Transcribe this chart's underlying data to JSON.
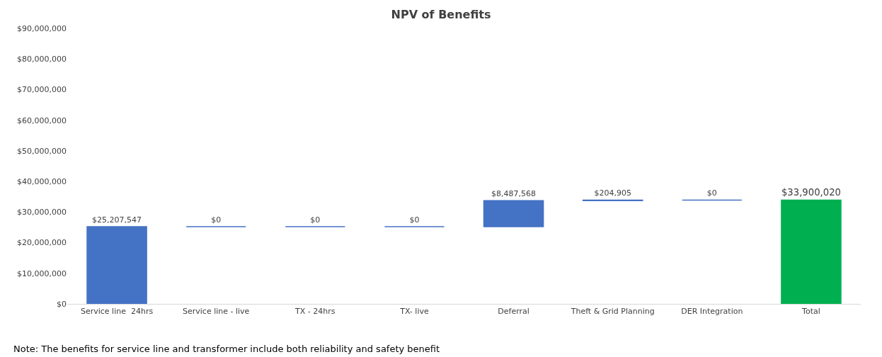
{
  "chart_data": {
    "type": "bar",
    "title": "NPV of Benefits",
    "categories": [
      "Service line  24hrs",
      "Service line - live",
      "TX - 24hrs",
      "TX- live",
      "Deferral",
      "Theft & Grid Planning",
      "DER Integration",
      "Total"
    ],
    "values": [
      25207547,
      0,
      0,
      0,
      8487568,
      204905,
      0,
      33900020
    ],
    "base": [
      0,
      25207547,
      25207547,
      25207547,
      25207547,
      33695115,
      33900020,
      0
    ],
    "colors": [
      "#4472c4",
      "#4472c4",
      "#4472c4",
      "#4472c4",
      "#4472c4",
      "#4472c4",
      "#4472c4",
      "#00b050"
    ],
    "value_labels": [
      "$25,207,547",
      "$0",
      "$0",
      "$0",
      "$8,487,568",
      "$204,905",
      "$0",
      "$33,900,020"
    ],
    "ylim": [
      0,
      90000000
    ],
    "yticks": [
      {
        "value": 0,
        "label": "$0"
      },
      {
        "value": 10000000,
        "label": "$10,000,000"
      },
      {
        "value": 20000000,
        "label": "$20,000,000"
      },
      {
        "value": 30000000,
        "label": "$30,000,000"
      },
      {
        "value": 40000000,
        "label": "$40,000,000"
      },
      {
        "value": 50000000,
        "label": "$50,000,000"
      },
      {
        "value": 60000000,
        "label": "$60,000,000"
      },
      {
        "value": 70000000,
        "label": "$70,000,000"
      },
      {
        "value": 80000000,
        "label": "$80,000,000"
      },
      {
        "value": 90000000,
        "label": "$90,000,000"
      }
    ],
    "legend": false,
    "annotations": [
      "Note: The benefits for service line and transformer include both reliability and safety benefit"
    ]
  }
}
